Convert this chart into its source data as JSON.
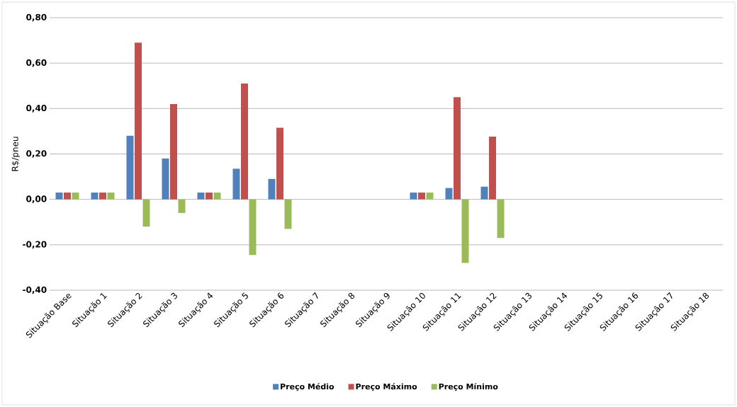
{
  "chart_data": {
    "type": "bar",
    "ylabel": "R$/pneu",
    "categories": [
      "Situação Base",
      "Situação 1",
      "Situação 2",
      "Situação 3",
      "Situação 4",
      "Situação 5",
      "Situação 6",
      "Situação 7",
      "Situação 8",
      "Situação 9",
      "Situação 10",
      "Situação 11",
      "Situação 12",
      "Situação 13",
      "Situação 14",
      "Situação 15",
      "Situação 16",
      "Situação 17",
      "Situação 18"
    ],
    "series": [
      {
        "name": "Preço Médio",
        "color": "#4f81bd",
        "values": [
          0.03,
          0.03,
          0.28,
          0.18,
          0.03,
          0.135,
          0.09,
          null,
          null,
          null,
          0.03,
          0.05,
          0.056,
          null,
          null,
          null,
          null,
          null,
          null
        ]
      },
      {
        "name": "Preço Máximo",
        "color": "#c0504d",
        "values": [
          0.03,
          0.03,
          0.69,
          0.42,
          0.03,
          0.51,
          0.315,
          null,
          null,
          null,
          0.03,
          0.45,
          0.276,
          null,
          null,
          null,
          null,
          null,
          null
        ]
      },
      {
        "name": "Preço Mínimo",
        "color": "#9bbb59",
        "values": [
          0.03,
          0.03,
          -0.12,
          -0.06,
          0.03,
          -0.245,
          -0.13,
          null,
          null,
          null,
          0.03,
          -0.28,
          -0.17,
          null,
          null,
          null,
          null,
          null,
          null
        ]
      }
    ],
    "ylim": [
      -0.4,
      0.8
    ],
    "yticks": [
      {
        "value": -0.4,
        "label": "-0,40"
      },
      {
        "value": -0.2,
        "label": "-0,20"
      },
      {
        "value": 0,
        "label": "0,00"
      },
      {
        "value": 0.2,
        "label": "0,20"
      },
      {
        "value": 0.4,
        "label": "0,40"
      },
      {
        "value": 0.6,
        "label": "0,60"
      },
      {
        "value": 0.8,
        "label": "0,80"
      }
    ],
    "grid": "y",
    "legend": "bottom"
  }
}
